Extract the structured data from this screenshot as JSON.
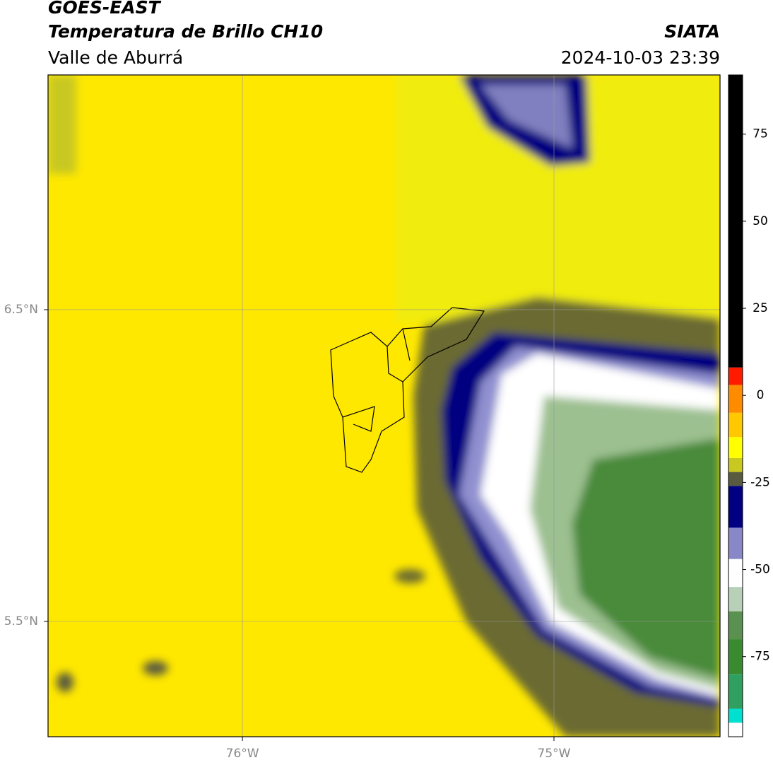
{
  "header": {
    "title": "GOES-EAST",
    "subtitle": "Temperatura de Brillo CH10",
    "region": "Valle de Aburrá",
    "source": "SIATA",
    "timestamp": "2024-10-03 23:39"
  },
  "map": {
    "xlim": [
      -76.624,
      -74.467
    ],
    "ylim": [
      5.13,
      7.253
    ],
    "grid": true,
    "xticks": [
      {
        "value": -76,
        "label": "76°W"
      },
      {
        "value": -75,
        "label": "75°W"
      }
    ],
    "yticks": [
      {
        "value": 6.5,
        "label": "6.5°N"
      },
      {
        "value": 5.5,
        "label": "5.5°N"
      }
    ]
  },
  "colorbar": {
    "ylim": [
      -98,
      92
    ],
    "yticks": [
      75,
      50,
      25,
      0,
      -25,
      -50,
      -75
    ],
    "stops": [
      [
        92,
        "#000000"
      ],
      [
        8,
        "#ff1a00"
      ],
      [
        3,
        "#ff8c00"
      ],
      [
        -5,
        "#ffc800"
      ],
      [
        -12,
        "#ffff00"
      ],
      [
        -18,
        "#c8c820"
      ],
      [
        -22,
        "#5a5a40"
      ],
      [
        -26,
        "#000080"
      ],
      [
        -38,
        "#8888c8"
      ],
      [
        -47,
        "#ffffff"
      ],
      [
        -55,
        "#b8d0b8"
      ],
      [
        -62,
        "#5a9050"
      ],
      [
        -70,
        "#3a8a30"
      ],
      [
        -80,
        "#30a060"
      ],
      [
        -90,
        "#00e0d0"
      ],
      [
        -94,
        "#ffffff"
      ]
    ]
  }
}
